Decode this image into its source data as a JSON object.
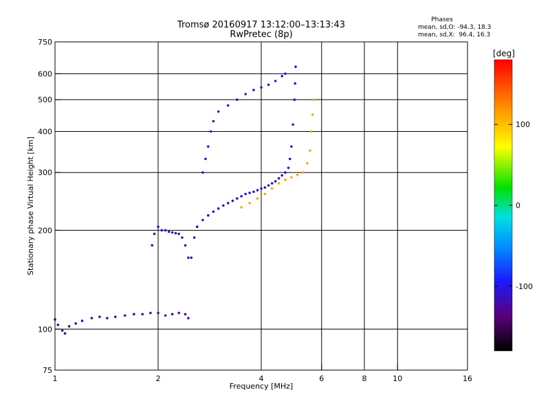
{
  "chart_data": {
    "type": "scatter",
    "title": "Tromsø 20160917 13:12:00–13:13:43",
    "subtitle": "RwPretec (8p)",
    "xlabel": "Frequency [MHz]",
    "ylabel": "Stationary phase Virtual Height [km]",
    "x_scale": "log",
    "y_scale": "log",
    "xlim": [
      1,
      16
    ],
    "ylim": [
      75,
      750
    ],
    "x_ticks": [
      1,
      2,
      4,
      6,
      8,
      10,
      16
    ],
    "y_ticks": [
      75,
      100,
      200,
      300,
      400,
      500,
      600,
      750
    ],
    "x_gridlines": [
      2,
      4,
      6,
      8,
      10
    ],
    "y_gridlines": [
      100,
      200,
      300,
      400,
      500,
      600
    ],
    "grid": true,
    "phase_stats": {
      "heading": "Phases",
      "line_o": "mean, sd,O: -94.3, 18.3",
      "line_x": "mean, sd,X:  96.4, 16.3"
    },
    "colorbar": {
      "label": "[deg]",
      "min": -180,
      "max": 180,
      "ticks": [
        100,
        0,
        -100
      ],
      "colormap": "rainbow"
    },
    "traces": [
      {
        "mode": "O",
        "phase": -125,
        "points": [
          [
            1.0,
            107
          ],
          [
            1.02,
            103
          ],
          [
            1.05,
            99
          ],
          [
            1.07,
            97
          ],
          [
            1.1,
            102
          ],
          [
            1.15,
            104
          ],
          [
            1.2,
            106
          ],
          [
            1.28,
            108
          ],
          [
            1.35,
            109
          ],
          [
            1.42,
            108
          ],
          [
            1.5,
            109
          ],
          [
            1.6,
            110
          ],
          [
            1.7,
            111
          ],
          [
            1.8,
            111
          ],
          [
            1.9,
            112
          ],
          [
            2.0,
            112
          ],
          [
            2.1,
            110
          ],
          [
            2.2,
            111
          ],
          [
            2.3,
            112
          ],
          [
            2.4,
            111
          ],
          [
            2.45,
            108
          ]
        ]
      },
      {
        "mode": "O",
        "phase": -115,
        "points": [
          [
            1.92,
            180
          ],
          [
            1.95,
            195
          ],
          [
            2.0,
            205
          ],
          [
            2.05,
            200
          ],
          [
            2.1,
            200
          ],
          [
            2.15,
            198
          ],
          [
            2.2,
            197
          ],
          [
            2.25,
            196
          ],
          [
            2.3,
            195
          ],
          [
            2.35,
            190
          ],
          [
            2.4,
            180
          ],
          [
            2.45,
            165
          ],
          [
            2.5,
            165
          ],
          [
            2.55,
            190
          ],
          [
            2.6,
            205
          ]
        ]
      },
      {
        "mode": "O",
        "phase": -110,
        "points": [
          [
            2.6,
            205
          ],
          [
            2.7,
            215
          ],
          [
            2.8,
            222
          ],
          [
            2.9,
            228
          ],
          [
            3.0,
            233
          ],
          [
            3.1,
            238
          ],
          [
            3.2,
            242
          ],
          [
            3.3,
            246
          ],
          [
            3.4,
            250
          ],
          [
            3.5,
            254
          ],
          [
            3.6,
            258
          ],
          [
            3.7,
            260
          ],
          [
            3.8,
            262
          ],
          [
            3.9,
            265
          ],
          [
            4.0,
            268
          ],
          [
            4.1,
            270
          ],
          [
            4.2,
            274
          ],
          [
            4.3,
            278
          ],
          [
            4.4,
            282
          ],
          [
            4.5,
            288
          ],
          [
            4.6,
            294
          ],
          [
            4.7,
            300
          ],
          [
            4.8,
            310
          ],
          [
            4.85,
            330
          ],
          [
            4.9,
            360
          ],
          [
            4.95,
            420
          ],
          [
            5.0,
            500
          ],
          [
            5.02,
            560
          ],
          [
            5.04,
            630
          ]
        ]
      },
      {
        "mode": "O",
        "phase": -100,
        "points": [
          [
            2.7,
            300
          ],
          [
            2.75,
            330
          ],
          [
            2.8,
            360
          ],
          [
            2.85,
            400
          ],
          [
            2.9,
            430
          ],
          [
            3.0,
            460
          ],
          [
            3.2,
            480
          ],
          [
            3.4,
            500
          ],
          [
            3.6,
            520
          ],
          [
            3.8,
            535
          ],
          [
            4.0,
            545
          ],
          [
            4.2,
            555
          ],
          [
            4.4,
            570
          ],
          [
            4.6,
            590
          ],
          [
            4.7,
            600
          ]
        ]
      },
      {
        "mode": "X",
        "phase": 110,
        "points": [
          [
            3.5,
            235
          ],
          [
            3.7,
            242
          ],
          [
            3.9,
            250
          ],
          [
            4.1,
            258
          ],
          [
            4.3,
            268
          ],
          [
            4.5,
            278
          ],
          [
            4.7,
            285
          ],
          [
            4.9,
            290
          ],
          [
            5.1,
            295
          ],
          [
            5.3,
            300
          ],
          [
            5.45,
            320
          ],
          [
            5.55,
            350
          ],
          [
            5.6,
            400
          ],
          [
            5.65,
            450
          ],
          [
            5.7,
            500
          ]
        ]
      }
    ]
  }
}
